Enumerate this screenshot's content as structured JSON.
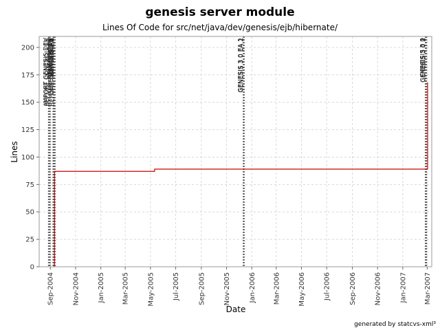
{
  "chart_data": {
    "type": "line",
    "title": "genesis server module",
    "subtitle": "Lines Of Code for src/net/java/dev/genesis/ejb/hibernate/",
    "xlabel": "Date",
    "ylabel": "Lines",
    "footer": "generated by statcvs-xml³",
    "xlim": [
      "2004-08-05",
      "2007-03-12"
    ],
    "ylim": [
      0,
      210
    ],
    "y_ticks": [
      0,
      25,
      50,
      75,
      100,
      125,
      150,
      175,
      200
    ],
    "x_ticks": [
      {
        "date": "2004-09-01",
        "label": "Sep-2004"
      },
      {
        "date": "2004-11-01",
        "label": "Nov-2004"
      },
      {
        "date": "2005-01-01",
        "label": "Jan-2005"
      },
      {
        "date": "2005-03-01",
        "label": "Mar-2005"
      },
      {
        "date": "2005-05-01",
        "label": "May-2005"
      },
      {
        "date": "2005-07-01",
        "label": "Jul-2005"
      },
      {
        "date": "2005-09-01",
        "label": "Sep-2005"
      },
      {
        "date": "2005-11-01",
        "label": "Nov-2005"
      },
      {
        "date": "2006-01-01",
        "label": "Jan-2006"
      },
      {
        "date": "2006-03-01",
        "label": "Mar-2006"
      },
      {
        "date": "2006-05-01",
        "label": "May-2006"
      },
      {
        "date": "2006-07-01",
        "label": "Jul-2006"
      },
      {
        "date": "2006-09-01",
        "label": "Sep-2006"
      },
      {
        "date": "2006-11-01",
        "label": "Nov-2006"
      },
      {
        "date": "2007-01-01",
        "label": "Jan-2007"
      },
      {
        "date": "2007-03-01",
        "label": "Mar-2007"
      }
    ],
    "grid": true,
    "series": [
      {
        "color": "#cc0000",
        "step": true,
        "points": [
          {
            "x": "2004-09-10",
            "y": 0
          },
          {
            "x": "2004-09-11",
            "y": 87
          },
          {
            "x": "2005-05-10",
            "y": 87
          },
          {
            "x": "2005-05-11",
            "y": 89
          },
          {
            "x": "2007-03-01",
            "y": 89
          },
          {
            "x": "2007-03-02",
            "y": 168
          }
        ]
      }
    ],
    "tag_markers": [
      {
        "date": "2004-08-28",
        "label": "IMPORT GENESIS DEV"
      },
      {
        "date": "2004-08-31",
        "label": "BEFORE CONTROLLER"
      },
      {
        "date": "2004-09-08",
        "label": "GENESIS DEV"
      },
      {
        "date": "2004-09-09",
        "label": "GENESIS 0 1"
      },
      {
        "date": "2004-09-10",
        "label": "GENESIS 0 1 BEAN"
      },
      {
        "date": "2004-09-11",
        "label": "GENESIS 0 2"
      },
      {
        "date": "2004-09-12",
        "label": "BEFORE CONTROLLER"
      },
      {
        "date": "2005-12-12",
        "label": "GENESIS 3 0 EA 1"
      },
      {
        "date": "2005-12-13",
        "label": "GENESIS 3 0 EA 2"
      },
      {
        "date": "2007-02-25",
        "label": "GENESIS 3 0"
      },
      {
        "date": "2007-02-26",
        "label": "GENESIS 3 0 1"
      },
      {
        "date": "2007-02-27",
        "label": "GENESIS 3 0 2"
      }
    ],
    "colors": {
      "line": "#cc0000",
      "grid": "#d8d8d8",
      "marker": "#606060",
      "frame": "#999999"
    }
  }
}
